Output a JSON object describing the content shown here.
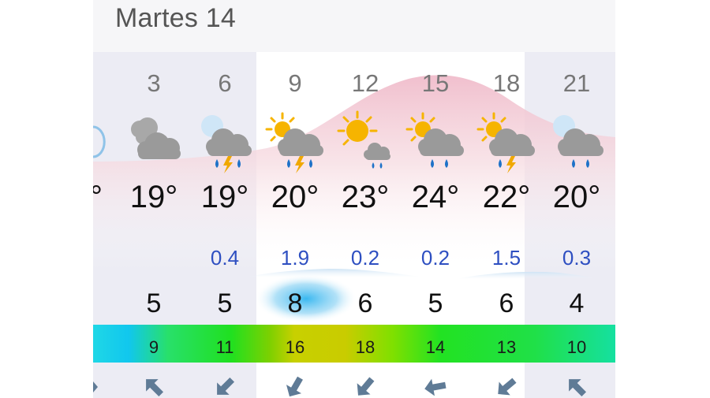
{
  "day_title": "Martes 14",
  "prev_temp_fragment": "°",
  "hours": [
    {
      "hour": "3",
      "icon": "cloudy-night-icon",
      "temp": "19°",
      "precip": "",
      "wind": "5",
      "gust": "9",
      "arrow": "wind-arrow-southwest-icon",
      "night": true
    },
    {
      "hour": "6",
      "icon": "night-thunderstorm-rain-icon",
      "temp": "19°",
      "precip": "0.4",
      "wind": "5",
      "gust": "11",
      "arrow": "wind-arrow-southwest-icon",
      "night": true
    },
    {
      "hour": "9",
      "icon": "sun-thunderstorm-rain-icon",
      "temp": "20°",
      "precip": "1.9",
      "wind": "8",
      "gust": "16",
      "arrow": "wind-arrow-southwest-icon",
      "night": false
    },
    {
      "hour": "12",
      "icon": "sun-light-rain-icon",
      "temp": "23°",
      "precip": "0.2",
      "wind": "6",
      "gust": "18",
      "arrow": "wind-arrow-southwest-icon",
      "night": false
    },
    {
      "hour": "15",
      "icon": "sun-rain-icon",
      "temp": "24°",
      "precip": "0.2",
      "wind": "5",
      "gust": "14",
      "arrow": "wind-arrow-west-icon",
      "night": false
    },
    {
      "hour": "18",
      "icon": "sun-thunderstorm-rain-icon",
      "temp": "22°",
      "precip": "1.5",
      "wind": "6",
      "gust": "13",
      "arrow": "wind-arrow-southwest-icon",
      "night": false
    },
    {
      "hour": "21",
      "icon": "night-rain-icon",
      "temp": "20°",
      "precip": "0.3",
      "wind": "4",
      "gust": "10",
      "arrow": "wind-arrow-northwest-icon",
      "night": true
    }
  ],
  "colors": {
    "temperature_curve": "#f2c6d0",
    "precip_number": "#2e4fc1",
    "night_shade": "#ececf4",
    "wind_highlight": "#3ab8f0"
  }
}
